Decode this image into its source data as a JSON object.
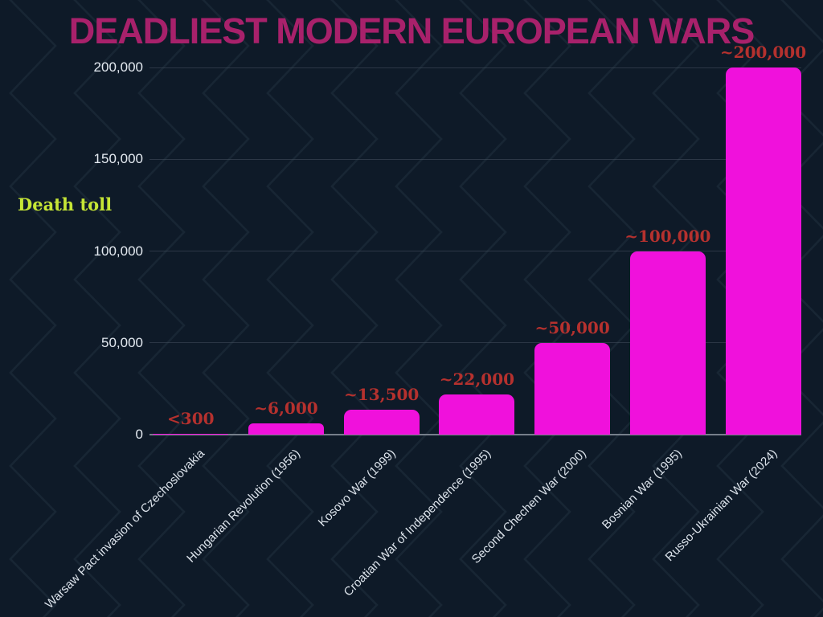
{
  "chart_data": {
    "type": "bar",
    "title": "DEADLIEST MODERN EUROPEAN WARS",
    "ylabel": "Death toll",
    "categories": [
      "Warsaw Pact invasion of Czechoslovakia",
      "Hungarian Revolution (1956)",
      "Kosovo War (1999)",
      "Croatian War of Independence (1995)",
      "Second Chechen War (2000)",
      "Bosnian War (1995)",
      "Russo-Ukrainian War (2024)"
    ],
    "values": [
      300,
      6000,
      13500,
      22000,
      50000,
      100000,
      200000
    ],
    "value_labels": [
      "<300",
      "~6,000",
      "~13,500",
      "~22,000",
      "~50,000",
      "~100,000",
      "~200,000"
    ],
    "yticks": [
      0,
      50000,
      100000,
      150000,
      200000
    ],
    "ytick_labels": [
      "0",
      "50,000",
      "100,000",
      "150,000",
      "200,000"
    ],
    "ylim": [
      0,
      200000
    ],
    "grid": true,
    "legend": "none",
    "colors": {
      "background": "#0E1A28",
      "bar": "#F011DC",
      "value_label": "#B5312E",
      "title": "#A8216B",
      "ylabel_text": "#C6E636",
      "ytick_text": "#E4EAF1",
      "xtick_text": "#DCE3EB",
      "gridline": "#45515F",
      "baseline": "#767F8B",
      "pattern_line": "#7896B4"
    }
  }
}
